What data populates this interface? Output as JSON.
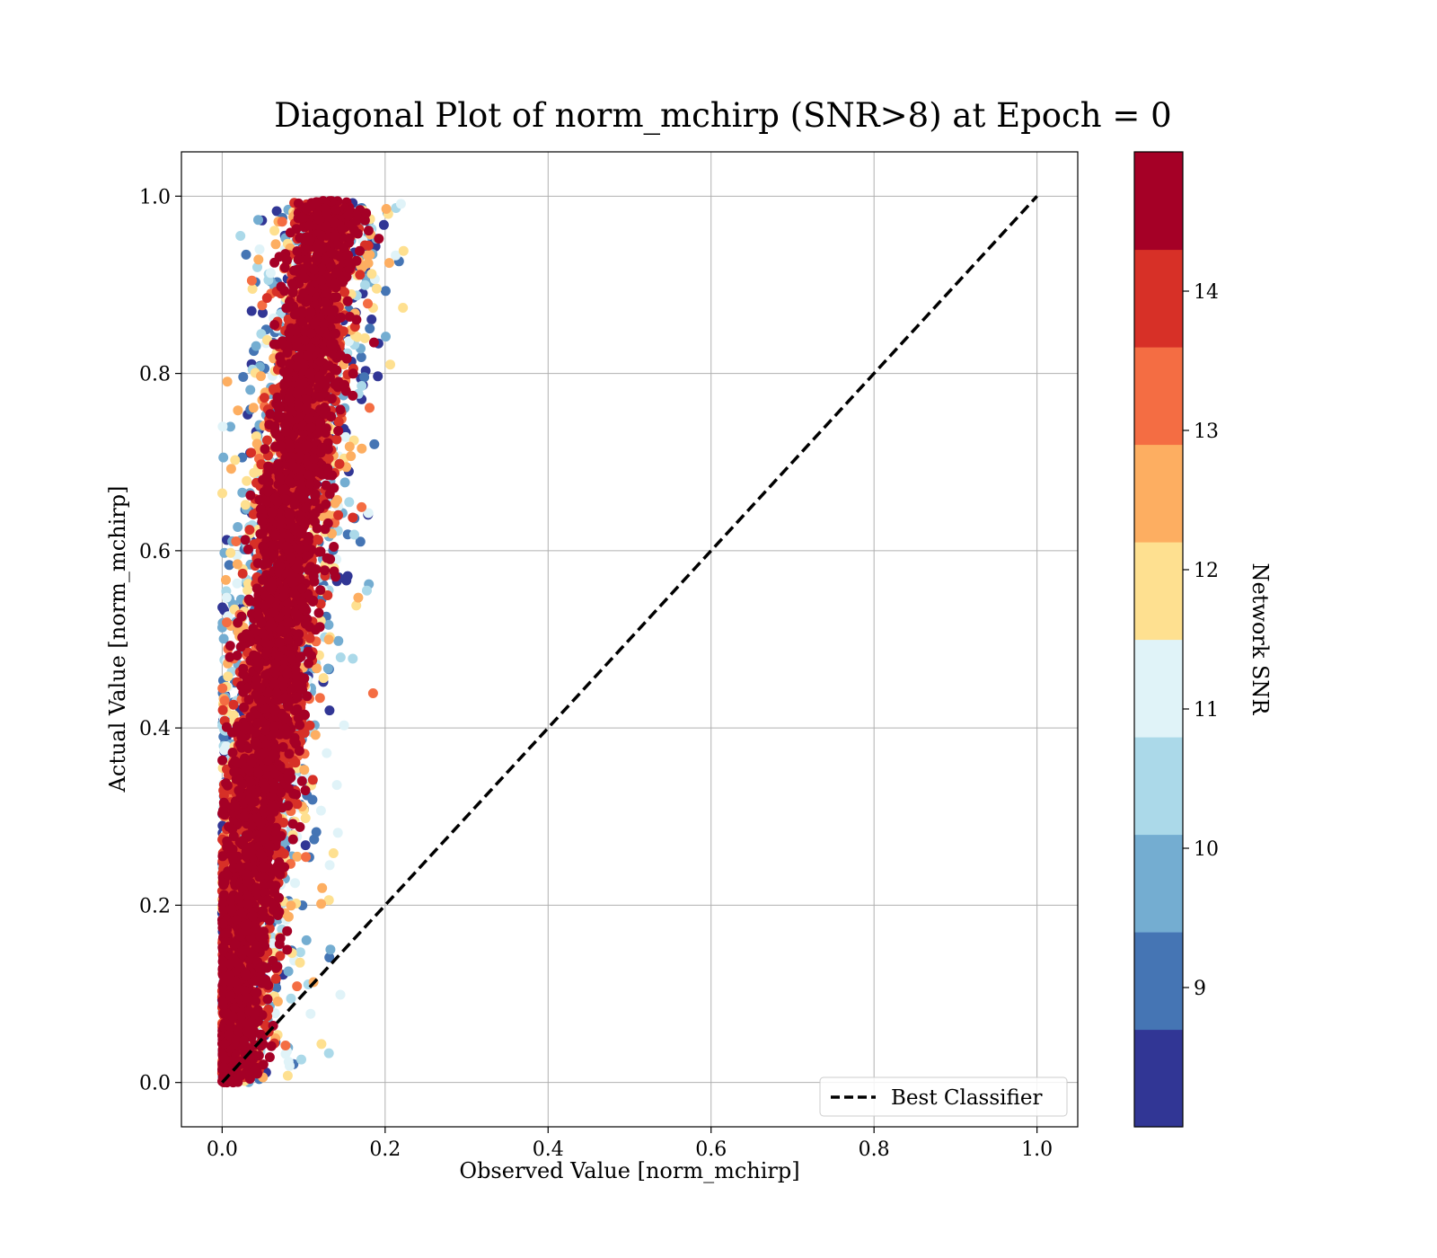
{
  "chart_data": {
    "type": "scatter",
    "title": "Diagonal Plot of norm_mchirp (SNR>8) at Epoch = 0",
    "xlabel": "Observed Value [norm_mchirp]",
    "ylabel": "Actual Value [norm_mchirp]",
    "xlim": [
      -0.05,
      1.05
    ],
    "ylim": [
      -0.05,
      1.05
    ],
    "xticks": [
      "0.0",
      "0.2",
      "0.4",
      "0.6",
      "0.8",
      "1.0"
    ],
    "yticks": [
      "0.0",
      "0.2",
      "0.4",
      "0.6",
      "0.8",
      "1.0"
    ],
    "grid": true,
    "legend": {
      "placement": "lower-right",
      "entries": [
        {
          "label": "Best Classifier",
          "style": "dashed",
          "color": "#000000"
        }
      ]
    },
    "reference_line": {
      "points": [
        [
          0,
          0
        ],
        [
          1,
          1
        ]
      ],
      "style": "dashed",
      "color": "#000000"
    },
    "colorbar": {
      "label": "Network SNR",
      "min": 8,
      "max": 15,
      "ticks": [
        "9",
        "10",
        "11",
        "12",
        "13",
        "14"
      ],
      "levels": [
        "#313695",
        "#4575b4",
        "#74add1",
        "#abd9e9",
        "#e0f3f8",
        "#fee090",
        "#fdae61",
        "#f46d43",
        "#d73027",
        "#a50026"
      ]
    },
    "point_distribution": {
      "description_free": true,
      "center_line": [
        [
          0.005,
          0.0
        ],
        [
          0.03,
          0.2
        ],
        [
          0.055,
          0.4
        ],
        [
          0.08,
          0.6
        ],
        [
          0.105,
          0.8
        ],
        [
          0.13,
          0.98
        ]
      ],
      "dense_halfwidth": 0.025,
      "spread_halfwidth": 0.05,
      "snr_range": [
        8,
        15
      ]
    }
  }
}
